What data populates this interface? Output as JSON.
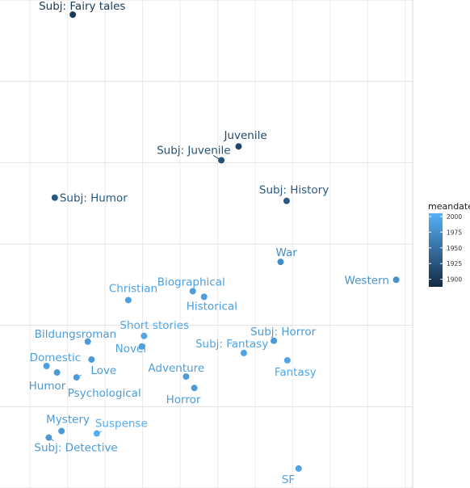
{
  "chart_data": {
    "type": "scatter",
    "title": "",
    "xlabel": "",
    "ylabel": "",
    "grid": true,
    "color_scale": {
      "name": "meandate",
      "min": 1888,
      "max": 2005,
      "low_color": "#132B43",
      "high_color": "#56B1F7",
      "ticks": [
        "1900",
        "1925",
        "1950",
        "1975",
        "2000"
      ]
    },
    "legend_position": "right",
    "points": [
      {
        "label": "Subj: Fairy tales",
        "x": 0.57,
        "y": 5.82,
        "meandate": 1900
      },
      {
        "label": "Juvenile",
        "x": 2.78,
        "y": 4.2,
        "meandate": 1912
      },
      {
        "label": "Subj: Juvenile",
        "x": 2.55,
        "y": 4.03,
        "meandate": 1922
      },
      {
        "label": "Subj: Humor",
        "x": 0.33,
        "y": 3.57,
        "meandate": 1926
      },
      {
        "label": "Subj: History",
        "x": 3.42,
        "y": 3.53,
        "meandate": 1928
      },
      {
        "label": "War",
        "x": 3.34,
        "y": 2.78,
        "meandate": 1972
      },
      {
        "label": "Western",
        "x": 4.88,
        "y": 2.56,
        "meandate": 1978
      },
      {
        "label": "Biographical",
        "x": 2.17,
        "y": 2.42,
        "meandate": 1988
      },
      {
        "label": "Christian",
        "x": 1.31,
        "y": 2.31,
        "meandate": 1990
      },
      {
        "label": "Historical",
        "x": 2.32,
        "y": 2.35,
        "meandate": 1988
      },
      {
        "label": "Short stories",
        "x": 1.52,
        "y": 1.87,
        "meandate": 1995
      },
      {
        "label": "Bildungsroman",
        "x": 0.77,
        "y": 1.8,
        "meandate": 1986
      },
      {
        "label": "Novel",
        "x": 1.49,
        "y": 1.74,
        "meandate": 1990
      },
      {
        "label": "Subj: Horror",
        "x": 3.25,
        "y": 1.81,
        "meandate": 1985
      },
      {
        "label": "Subj: Fantasy",
        "x": 2.85,
        "y": 1.66,
        "meandate": 1992
      },
      {
        "label": "Domestic",
        "x": 0.22,
        "y": 1.5,
        "meandate": 1990
      },
      {
        "label": "Love",
        "x": 0.82,
        "y": 1.58,
        "meandate": 1986
      },
      {
        "label": "Fantasy",
        "x": 3.43,
        "y": 1.57,
        "meandate": 1995
      },
      {
        "label": "Humor",
        "x": 0.36,
        "y": 1.42,
        "meandate": 1985
      },
      {
        "label": "Psychological",
        "x": 0.62,
        "y": 1.36,
        "meandate": 1986
      },
      {
        "label": "Adventure",
        "x": 2.08,
        "y": 1.37,
        "meandate": 1987
      },
      {
        "label": "Horror",
        "x": 2.19,
        "y": 1.23,
        "meandate": 1986
      },
      {
        "label": "Mystery",
        "x": 0.42,
        "y": 0.7,
        "meandate": 1985
      },
      {
        "label": "Suspense",
        "x": 0.89,
        "y": 0.67,
        "meandate": 2001
      },
      {
        "label": "Subj: Detective",
        "x": 0.25,
        "y": 0.62,
        "meandate": 1984
      },
      {
        "label": "SF",
        "x": 3.58,
        "y": 0.24,
        "meandate": 1992
      }
    ],
    "xlim": [
      -0.4,
      5.1
    ],
    "ylim": [
      0.0,
      6.0
    ]
  }
}
